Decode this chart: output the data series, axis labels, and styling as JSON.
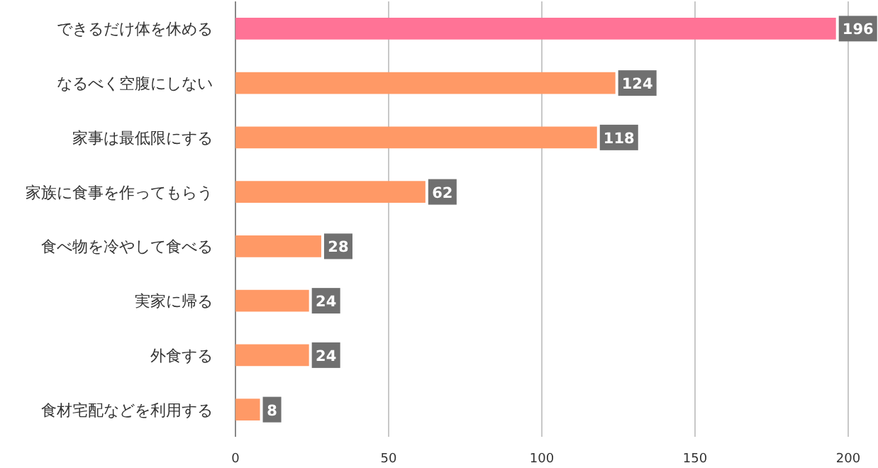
{
  "chart_data": {
    "type": "bar",
    "orientation": "horizontal",
    "categories": [
      "できるだけ体を休める",
      "なるべく空腹にしない",
      "家事は最低限にする",
      "家族に食事を作ってもらう",
      "食べ物を冷やして食べる",
      "実家に帰る",
      "外食する",
      "食材宅配などを利用する"
    ],
    "values": [
      196,
      124,
      118,
      62,
      28,
      24,
      24,
      8
    ],
    "colors": [
      "#ff7396",
      "#ff9966",
      "#ff9966",
      "#ff9966",
      "#ff9966",
      "#ff9966",
      "#ff9966",
      "#ff9966"
    ],
    "xlim": [
      0,
      200
    ],
    "xticks": [
      0,
      50,
      100,
      150,
      200
    ],
    "grid": "x",
    "data_labels": true
  }
}
